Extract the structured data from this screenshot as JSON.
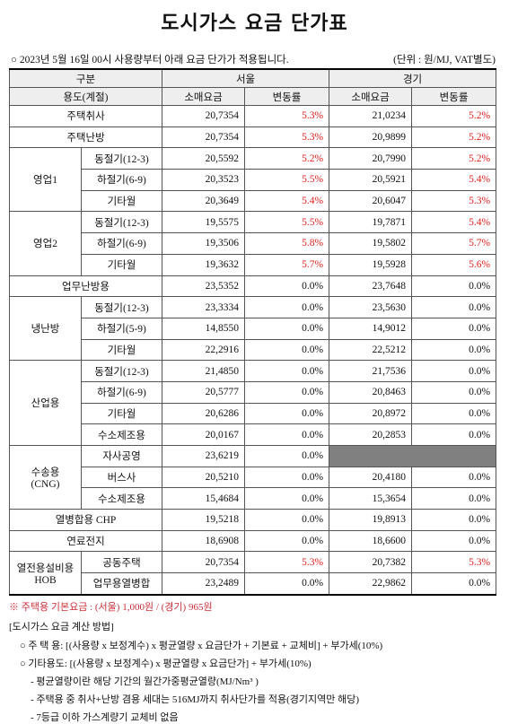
{
  "header": {
    "title": "도시가스 요금 단가표",
    "notice": "○ 2023년 5월 16일 00시 사용량부터 아래 요금 단가가 적용됩니다.",
    "unit": "(단위 : 원/MJ, VAT별도)"
  },
  "table": {
    "head": {
      "category": "구분",
      "seoul": "서울",
      "gyeonggi": "경기",
      "usage": "용도(계절)",
      "price": [
        "소매요금",
        "소매요금"
      ],
      "rate": [
        "변동률",
        "변동률"
      ]
    },
    "rows": [
      {
        "name": "주택취사",
        "values": [
          "20,7354",
          "5.3%",
          "21,0234",
          "5.2%"
        ]
      },
      {
        "name": "주택난방",
        "values": [
          "20,7354",
          "5.3%",
          "20,9899",
          "5.2%"
        ]
      },
      {
        "name": "영업1",
        "subrows": [
          {
            "name": "동절기(12-3)",
            "values": [
              "20,5592",
              "5.2%",
              "20,7990",
              "5.2%"
            ]
          },
          {
            "name": "하절기(6-9)",
            "values": [
              "20,3523",
              "5.5%",
              "20,5921",
              "5.4%"
            ]
          },
          {
            "name": "기타월",
            "values": [
              "20,3649",
              "5.4%",
              "20,6047",
              "5.3%"
            ]
          }
        ]
      },
      {
        "name": "영업2",
        "subrows": [
          {
            "name": "동절기(12-3)",
            "values": [
              "19,5575",
              "5.5%",
              "19,7871",
              "5.4%"
            ]
          },
          {
            "name": "하절기(6-9)",
            "values": [
              "19,3506",
              "5.8%",
              "19,5802",
              "5.7%"
            ]
          },
          {
            "name": "기타월",
            "values": [
              "19,3632",
              "5.7%",
              "19,5928",
              "5.6%"
            ]
          }
        ]
      },
      {
        "name": "업무난방용",
        "values": [
          "23,5352",
          "0.0%",
          "23,7648",
          "0.0%"
        ]
      },
      {
        "name": "냉난방",
        "subrows": [
          {
            "name": "동절기(12-3)",
            "values": [
              "23,3334",
              "0.0%",
              "23,5630",
              "0.0%"
            ]
          },
          {
            "name": "하절기(5-9)",
            "values": [
              "14,8550",
              "0.0%",
              "14,9012",
              "0.0%"
            ]
          },
          {
            "name": "기타월",
            "values": [
              "22,2916",
              "0.0%",
              "22,5212",
              "0.0%"
            ]
          }
        ]
      },
      {
        "name": "산업용",
        "subrows": [
          {
            "name": "동절기(12-3)",
            "values": [
              "21,4850",
              "0.0%",
              "21,7536",
              "0.0%"
            ]
          },
          {
            "name": "하절기(6-9)",
            "values": [
              "20,5777",
              "0.0%",
              "20,8463",
              "0.0%"
            ]
          },
          {
            "name": "기타월",
            "values": [
              "20,6286",
              "0.0%",
              "20,8972",
              "0.0%"
            ]
          },
          {
            "name": "수소제조용",
            "values": [
              "20,0167",
              "0.0%",
              "20,2853",
              "0.0%"
            ]
          }
        ]
      },
      {
        "name": "수송용\n(CNG)",
        "subrows": [
          {
            "name": "자사공영",
            "values": [
              "23,6219",
              "0.0%"
            ]
          },
          {
            "name": "버스사",
            "values": [
              "20,5210",
              "0.0%",
              "20,4180",
              "0.0%"
            ]
          },
          {
            "name": "수소제조용",
            "values": [
              "15,4684",
              "0.0%",
              "15,3654",
              "0.0%"
            ]
          }
        ]
      },
      {
        "name": "열병합용 CHP",
        "values": [
          "19,5218",
          "0.0%",
          "19,8913",
          "0.0%"
        ]
      },
      {
        "name": "연료전지",
        "values": [
          "18,6908",
          "0.0%",
          "18,6600",
          "0.0%"
        ]
      },
      {
        "name": "열전용설비용\nHOB",
        "subrows": [
          {
            "name": "공동주택",
            "values": [
              "20,7354",
              "5.3%",
              "20,7382",
              "5.3%"
            ]
          },
          {
            "name": "업무용열병합",
            "values": [
              "23,2489",
              "0.0%",
              "22,9862",
              "0.0%"
            ]
          }
        ]
      }
    ]
  },
  "footnote": "※ 주택용 기본요금 : (서울) 1,000원 / (경기) 965원",
  "method": {
    "title": "[도시가스 요금 계산 방법]",
    "lines": [
      "○ 주 택 용: [(사용량 x 보정계수) x 평균열량 x 요금단가 + 기본료 + 교체비] + 부가세(10%)",
      "○ 기타용도: [(사용량 x 보정계수) x 평균열량 x 요금단가] + 부가세(10%)",
      "- 평균열량이란 해당 기간의 월간가중평균열량(MJ/Nm³ )",
      "- 주택용 중 취사+난방 겸용 세대는 516MJ까지 취사단가를 적용(경기지역만 해당)",
      "- 7등급 이하 가스계량기 교체비 없음"
    ]
  }
}
